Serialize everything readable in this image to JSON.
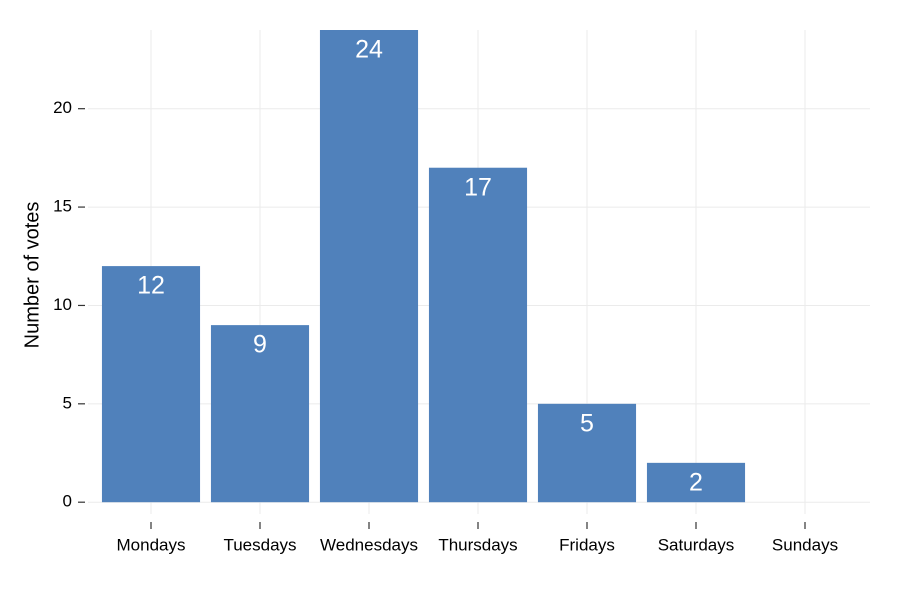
{
  "chart_data": {
    "type": "bar",
    "y_label": "Number of votes",
    "categories": [
      "Mondays",
      "Tuesdays",
      "Wednesdays",
      "Thursdays",
      "Fridays",
      "Saturdays",
      "Sundays"
    ],
    "values": [
      12,
      9,
      24,
      17,
      5,
      2,
      0
    ],
    "color": "#5081bb",
    "ylim": [
      -0.6,
      24
    ],
    "yticks": [
      0,
      5,
      10,
      15,
      20
    ],
    "grid": true
  }
}
